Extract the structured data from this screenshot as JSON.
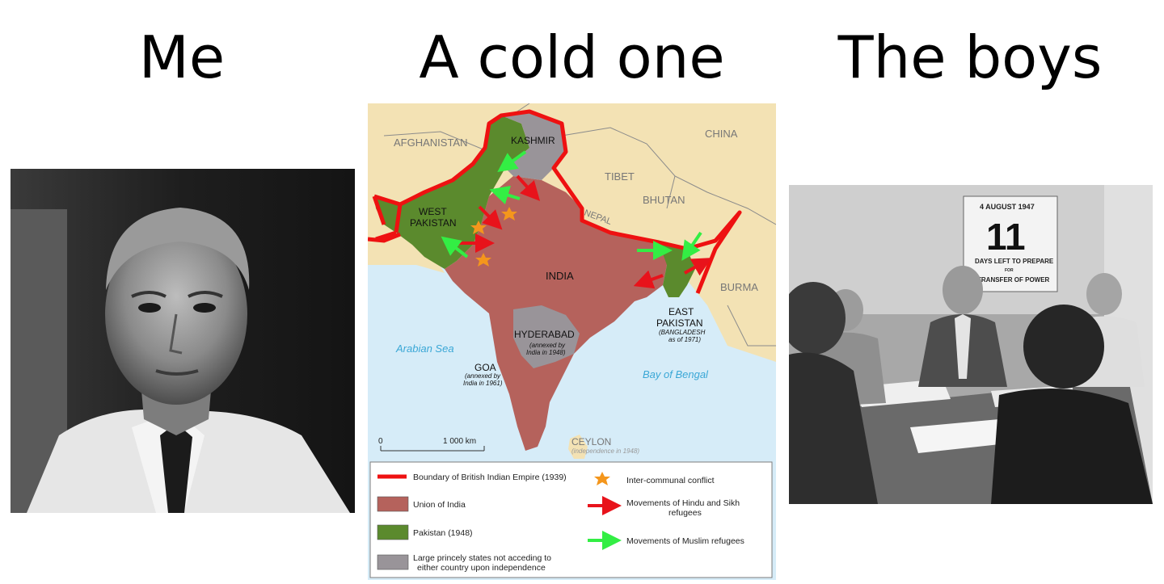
{
  "captions": {
    "left": "Me",
    "middle": "A cold one",
    "right": "The boys"
  },
  "map": {
    "regions": {
      "afghanistan": "AFGHANISTAN",
      "kashmir": "KASHMIR",
      "china": "CHINA",
      "tibet": "TIBET",
      "bhutan": "BHUTAN",
      "nepal": "NEPAL",
      "west_pakistan_1": "WEST",
      "west_pakistan_2": "PAKISTAN",
      "india": "INDIA",
      "burma": "BURMA",
      "east_pakistan_1": "EAST",
      "east_pakistan_2": "PAKISTAN",
      "bangladesh_1": "(BANGLADESH",
      "bangladesh_2": "as of 1971)",
      "hyderabad": "HYDERABAD",
      "hyderabad_note_1": "(annexed by",
      "hyderabad_note_2": "India in 1948)",
      "goa": "GOA",
      "goa_note_1": "(annexed by",
      "goa_note_2": "India in 1961)",
      "arabian_sea": "Arabian Sea",
      "bay_of_bengal": "Bay of Bengal",
      "ceylon": "CEYLON",
      "ceylon_note": "(independence in 1948)"
    },
    "scale": {
      "zero": "0",
      "distance": "1 000 km"
    },
    "legend": {
      "boundary": "Boundary of British Indian Empire (1939)",
      "union": "Union of India",
      "pakistan": "Pakistan (1948)",
      "princely_1": "Large princely states not acceding to",
      "princely_2": "either country upon independence",
      "conflict": "Inter-communal conflict",
      "hindu_sikh_1": "Movements of Hindu and Sikh",
      "hindu_sikh_2": "refugees",
      "muslim": "Movements of Muslim refugees"
    },
    "colors": {
      "land": "#f3e2b4",
      "sea": "#d6ecf8",
      "india": "#b5625c",
      "pakistan": "#5b8a2d",
      "princely": "#999499",
      "boundary": "#ee1111",
      "hindu_arrow": "#e8131b",
      "muslim_arrow": "#33ee44",
      "conflict_star": "#f4961c"
    }
  },
  "right_photo": {
    "calendar_date": "4 AUGUST 1947",
    "calendar_number": "11",
    "calendar_line_1": "DAYS LEFT TO PREPARE",
    "calendar_line_2": "FOR",
    "calendar_line_3": "TRANSFER OF POWER"
  }
}
